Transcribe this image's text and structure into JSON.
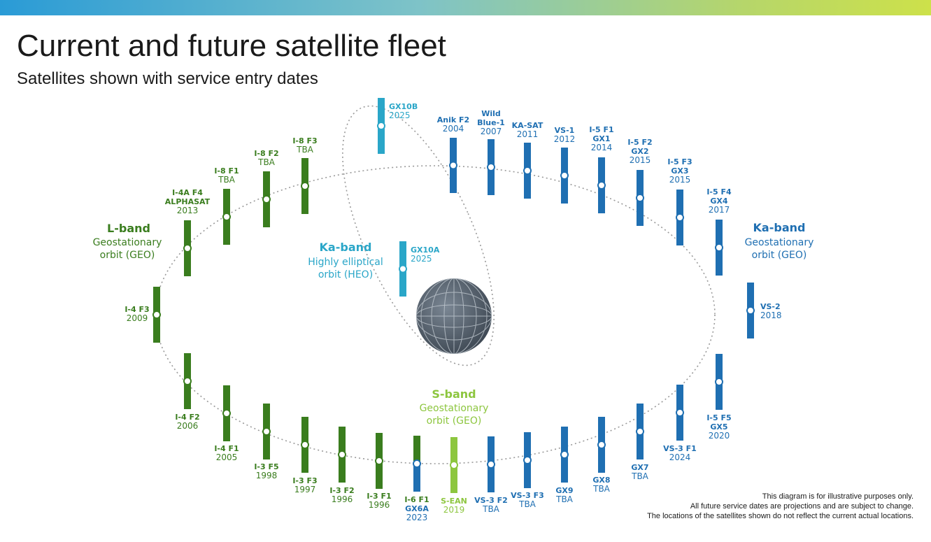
{
  "title": "Current and future satellite fleet",
  "subtitle": "Satellites shown with service entry dates",
  "colors": {
    "l_band": "#3a7d1e",
    "ka_band": "#1f6fb2",
    "heo": "#2aa6c8",
    "s_band": "#8dc63f",
    "globe": "#5a6674"
  },
  "orbits": {
    "l_band": {
      "name": "L-band",
      "lines": [
        "Geostationary",
        "orbit (GEO)"
      ]
    },
    "ka_band": {
      "name": "Ka-band",
      "lines": [
        "Geostationary",
        "orbit (GEO)"
      ]
    },
    "heo": {
      "name": "Ka-band",
      "lines": [
        "Highly elliptical",
        "orbit (HEO)"
      ]
    },
    "s_band": {
      "name": "S-band",
      "lines": [
        "Geostationary",
        "orbit (GEO)"
      ]
    }
  },
  "satellites": [
    {
      "id": "GX10B",
      "lines": [
        "GX10B"
      ],
      "date": "2025",
      "band": "heo"
    },
    {
      "id": "GX10A",
      "lines": [
        "GX10A"
      ],
      "date": "2025",
      "band": "heo"
    },
    {
      "id": "Anik F2",
      "lines": [
        "Anik F2"
      ],
      "date": "2004",
      "band": "ka"
    },
    {
      "id": "Wild Blue-1",
      "lines": [
        "Wild",
        "Blue-1"
      ],
      "date": "2007",
      "band": "ka"
    },
    {
      "id": "KA-SAT",
      "lines": [
        "KA-SAT"
      ],
      "date": "2011",
      "band": "ka"
    },
    {
      "id": "VS-1",
      "lines": [
        "VS-1"
      ],
      "date": "2012",
      "band": "ka"
    },
    {
      "id": "I-5 F1",
      "lines": [
        "I-5 F1",
        "GX1"
      ],
      "date": "2014",
      "band": "ka"
    },
    {
      "id": "I-5 F2",
      "lines": [
        "I-5 F2",
        "GX2"
      ],
      "date": "2015",
      "band": "ka"
    },
    {
      "id": "I-5 F3",
      "lines": [
        "I-5 F3",
        "GX3"
      ],
      "date": "2015",
      "band": "ka"
    },
    {
      "id": "I-5 F4",
      "lines": [
        "I-5 F4",
        "GX4"
      ],
      "date": "2017",
      "band": "ka"
    },
    {
      "id": "VS-2",
      "lines": [
        "VS-2"
      ],
      "date": "2018",
      "band": "ka"
    },
    {
      "id": "I-5 F5",
      "lines": [
        "I-5 F5",
        "GX5"
      ],
      "date": "2020",
      "band": "ka"
    },
    {
      "id": "VS-3 F1",
      "lines": [
        "VS-3 F1"
      ],
      "date": "2024",
      "band": "ka"
    },
    {
      "id": "GX7",
      "lines": [
        "GX7"
      ],
      "date": "TBA",
      "band": "ka"
    },
    {
      "id": "GX8",
      "lines": [
        "GX8"
      ],
      "date": "TBA",
      "band": "ka"
    },
    {
      "id": "GX9",
      "lines": [
        "GX9"
      ],
      "date": "TBA",
      "band": "ka"
    },
    {
      "id": "VS-3 F3",
      "lines": [
        "VS-3 F3"
      ],
      "date": "TBA",
      "band": "ka"
    },
    {
      "id": "VS-3 F2",
      "lines": [
        "VS-3 F2"
      ],
      "date": "TBA",
      "band": "ka"
    },
    {
      "id": "S-EAN",
      "lines": [
        "S-EAN"
      ],
      "date": "2019",
      "band": "s"
    },
    {
      "id": "I-6 F1",
      "lines": [
        "I-6 F1",
        "GX6A"
      ],
      "date": "2023",
      "band": "l+ka"
    },
    {
      "id": "I-3 F1",
      "lines": [
        "I-3 F1"
      ],
      "date": "1996",
      "band": "l"
    },
    {
      "id": "I-3 F2",
      "lines": [
        "I-3 F2"
      ],
      "date": "1996",
      "band": "l"
    },
    {
      "id": "I-3 F3",
      "lines": [
        "I-3 F3"
      ],
      "date": "1997",
      "band": "l"
    },
    {
      "id": "I-3 F5",
      "lines": [
        "I-3 F5"
      ],
      "date": "1998",
      "band": "l"
    },
    {
      "id": "I-4 F1",
      "lines": [
        "I-4 F1"
      ],
      "date": "2005",
      "band": "l"
    },
    {
      "id": "I-4 F2",
      "lines": [
        "I-4 F2"
      ],
      "date": "2006",
      "band": "l"
    },
    {
      "id": "I-4 F3",
      "lines": [
        "I-4 F3"
      ],
      "date": "2009",
      "band": "l"
    },
    {
      "id": "I-4A F4",
      "lines": [
        "I-4A F4",
        "ALPHASAT"
      ],
      "date": "2013",
      "band": "l"
    },
    {
      "id": "I-8 F1",
      "lines": [
        "I-8 F1"
      ],
      "date": "TBA",
      "band": "l"
    },
    {
      "id": "I-8 F2",
      "lines": [
        "I-8 F2"
      ],
      "date": "TBA",
      "band": "l"
    },
    {
      "id": "I-8 F3",
      "lines": [
        "I-8 F3"
      ],
      "date": "TBA",
      "band": "l"
    }
  ],
  "disclaimer": [
    "This diagram is for illustrative purposes only.",
    "All future service dates are projections and are subject to change.",
    "The locations of the satellites shown do not reflect the current actual locations."
  ]
}
